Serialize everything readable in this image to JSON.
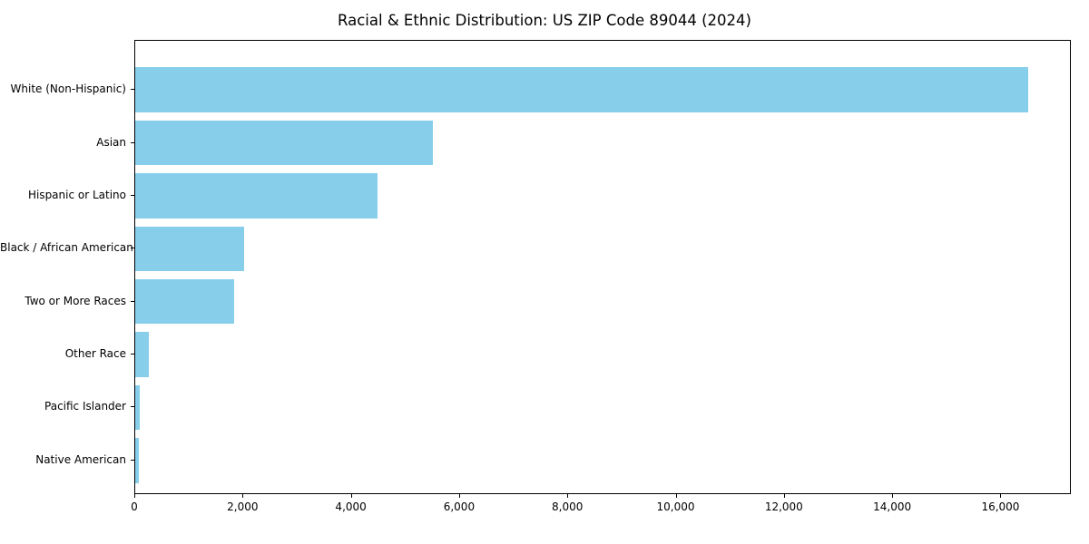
{
  "chart_data": {
    "type": "bar",
    "orientation": "horizontal",
    "title": "Racial & Ethnic Distribution: US ZIP Code 89044 (2024)",
    "categories": [
      "White (Non-Hispanic)",
      "Asian",
      "Hispanic or Latino",
      "Black / African American",
      "Two or More Races",
      "Other Race",
      "Pacific Islander",
      "Native American"
    ],
    "values": [
      16500,
      5500,
      4480,
      2020,
      1820,
      250,
      80,
      60
    ],
    "bar_color": "#87CEEB",
    "xlabel": "",
    "ylabel": "",
    "xlim": [
      0,
      17300
    ],
    "x_ticks": [
      0,
      2000,
      4000,
      6000,
      8000,
      10000,
      12000,
      14000,
      16000
    ],
    "x_tick_labels": [
      "0",
      "2,000",
      "4,000",
      "6,000",
      "8,000",
      "10,000",
      "12,000",
      "14,000",
      "16,000"
    ],
    "grid": false,
    "legend": null
  }
}
